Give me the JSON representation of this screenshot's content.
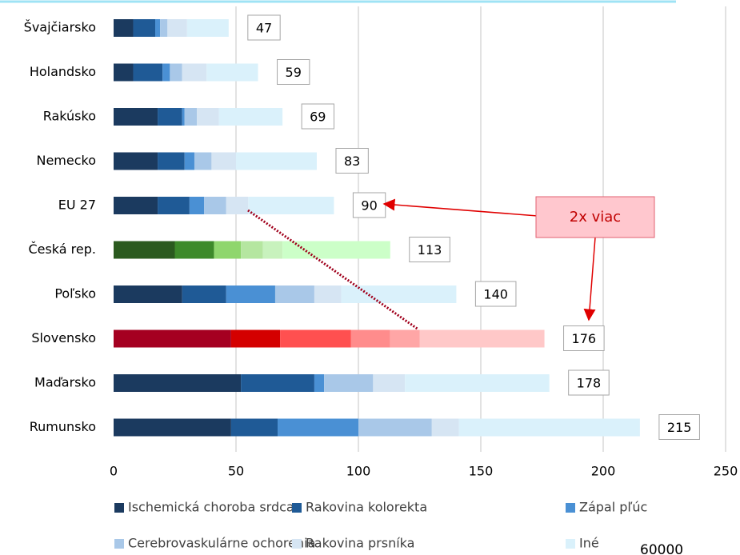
{
  "chart_data": {
    "type": "stacked-bar-horizontal",
    "categories": [
      "Švajčiarsko",
      "Holandsko",
      "Rakúsko",
      "Nemecko",
      "EU 27",
      "Česká rep.",
      "Poľsko",
      "Slovensko",
      "Maďarsko",
      "Rumunsko"
    ],
    "series": [
      {
        "name": "Ischemická choroba srdca",
        "color": "#1b3a5f",
        "values": [
          8,
          8,
          18,
          18,
          18,
          25,
          28,
          48,
          52,
          48
        ]
      },
      {
        "name": "Rakovina kolorekta",
        "color": "#1f5a96",
        "values": [
          9,
          12,
          10,
          11,
          13,
          16,
          18,
          20,
          30,
          19
        ]
      },
      {
        "name": "Zápal pľúc",
        "color": "#4a90d4",
        "values": [
          2,
          3,
          1,
          4,
          6,
          11,
          20,
          29,
          4,
          33
        ]
      },
      {
        "name": "Cerebrovaskulárne ochorenia",
        "color": "#a9c8e8",
        "values": [
          3,
          5,
          5,
          7,
          9,
          9,
          16,
          16,
          20,
          30
        ]
      },
      {
        "name": "Rakovina prsníka",
        "color": "#d6e5f3",
        "values": [
          8,
          10,
          9,
          10,
          9,
          8,
          11,
          12,
          13,
          11
        ]
      },
      {
        "name": "Iné",
        "color": "#daf1fb",
        "values": [
          17,
          21,
          26,
          33,
          35,
          44,
          47,
          51,
          59,
          74
        ]
      }
    ],
    "totals": [
      47,
      59,
      69,
      83,
      90,
      113,
      140,
      176,
      178,
      215
    ],
    "category_colors": {
      "Česká rep.": [
        "#2b5a1f",
        "#3d8a2a",
        "#8fd66d",
        "#b5e6a0",
        "#c8f2bd",
        "#ccffc8"
      ],
      "Slovensko": [
        "#a50021",
        "#d40000",
        "#ff5050",
        "#ff8c8c",
        "#ffa6a6",
        "#ffc8c8"
      ]
    },
    "xlim": [
      0,
      250
    ],
    "xticks": [
      0,
      50,
      100,
      150,
      200,
      250
    ],
    "grid": true,
    "annotation": "2x viac",
    "footer_text": "60000"
  }
}
